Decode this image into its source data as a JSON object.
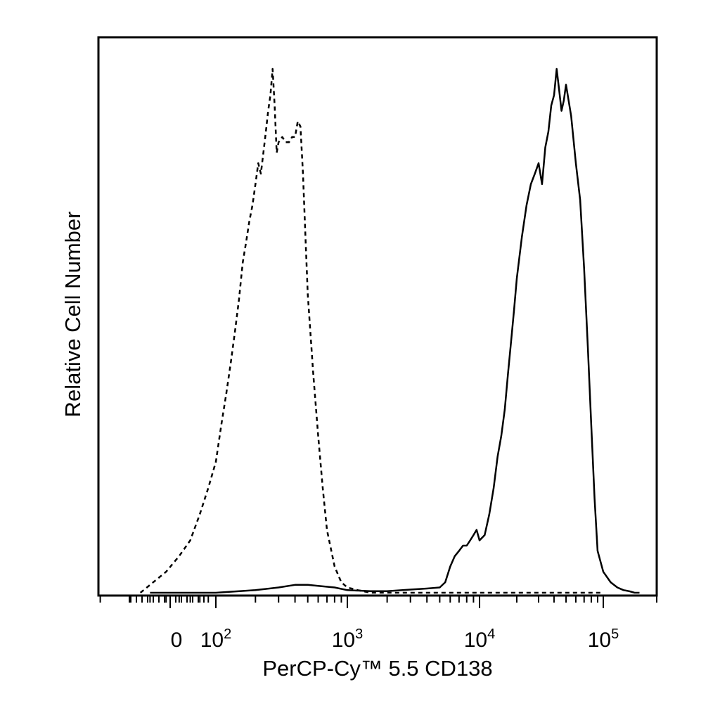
{
  "chart_data": {
    "type": "line",
    "title": "",
    "xlabel": "PerCP-Cy™ 5.5 CD138",
    "ylabel": "Relative Cell Number",
    "x_scale": "biexponential",
    "x_tick_labels": [
      {
        "value": 0,
        "base": "0",
        "exp": ""
      },
      {
        "value": 100,
        "base": "10",
        "exp": "2"
      },
      {
        "value": 1000,
        "base": "10",
        "exp": "3"
      },
      {
        "value": 10000,
        "base": "10",
        "exp": "4"
      },
      {
        "value": 100000,
        "base": "10",
        "exp": "5"
      }
    ],
    "ylim": [
      0,
      100
    ],
    "grid": false,
    "series": [
      {
        "line_style": "dashed",
        "x": [
          35,
          50,
          60,
          70,
          80,
          90,
          100,
          110,
          120,
          130,
          140,
          150,
          160,
          170,
          180,
          190,
          200,
          210,
          220,
          230,
          240,
          250,
          260,
          270,
          280,
          290,
          300,
          320,
          340,
          360,
          380,
          400,
          420,
          440,
          460,
          480,
          500,
          550,
          600,
          650,
          700,
          800,
          900,
          1000,
          1200,
          1500,
          2000,
          5000,
          20000,
          100000
        ],
        "y": [
          0,
          4,
          7,
          10,
          15,
          20,
          25,
          32,
          38,
          44,
          50,
          56,
          63,
          67,
          71,
          74,
          78,
          82,
          80,
          84,
          88,
          92,
          95,
          100,
          93,
          84,
          86,
          87,
          86,
          86,
          87,
          87,
          90,
          89,
          80,
          68,
          57,
          42,
          30,
          20,
          12,
          5,
          2,
          1,
          0.5,
          0,
          0,
          0,
          0,
          0
        ]
      },
      {
        "line_style": "solid",
        "x": [
          40,
          100,
          200,
          300,
          400,
          500,
          600,
          800,
          1000,
          1500,
          2000,
          3000,
          4000,
          5000,
          5500,
          6000,
          6500,
          7000,
          7500,
          8000,
          8500,
          9000,
          9500,
          10000,
          11000,
          12000,
          13000,
          14000,
          15000,
          16000,
          17000,
          18000,
          19000,
          20000,
          22000,
          24000,
          26000,
          28000,
          30000,
          32000,
          34000,
          36000,
          38000,
          40000,
          42000,
          44000,
          46000,
          48000,
          50000,
          55000,
          60000,
          65000,
          70000,
          75000,
          80000,
          85000,
          90000,
          100000,
          110000,
          120000,
          130000,
          140000,
          150000,
          160000
        ],
        "y": [
          0,
          0,
          0.5,
          1,
          1.5,
          1.5,
          1.3,
          1,
          0.5,
          0.3,
          0.3,
          0.6,
          0.8,
          1,
          2,
          5,
          7,
          8,
          9,
          9,
          10,
          11,
          12,
          10,
          11,
          15,
          20,
          26,
          30,
          35,
          42,
          48,
          54,
          60,
          68,
          74,
          78,
          80,
          82,
          78,
          85,
          88,
          93,
          95,
          100,
          96,
          92,
          94,
          97,
          91,
          82,
          75,
          62,
          47,
          32,
          18,
          8,
          4,
          2,
          1,
          0.5,
          0.3,
          0,
          0
        ]
      }
    ]
  }
}
